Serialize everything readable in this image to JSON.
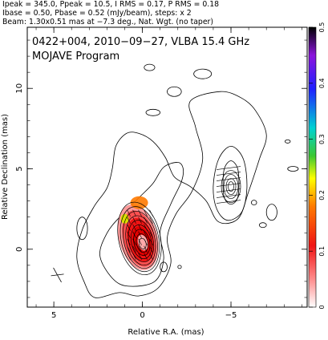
{
  "header": {
    "line1": "Ipeak = 345.0, Ppeak = 10.5, I RMS = 0.17, P RMS = 0.18",
    "line2": "Ibase = 0.50, Pbase = 0.52 (mJy/beam), steps: x 2",
    "line3": "Beam: 1.30x0.51 mas at −7.3 deg., Nat. Wgt. (no taper)"
  },
  "chart_data": {
    "type": "contour",
    "title": "0422+004, 2010−09−27, VLBA 15.4 GHz",
    "subtitle": "MOJAVE Program",
    "xlabel": "Relative R.A. (mas)",
    "ylabel": "Relative Declination (mas)",
    "xlim": [
      6.5,
      -9.3
    ],
    "ylim": [
      -3.6,
      13.8
    ],
    "x_ticks": [
      5,
      0,
      -5
    ],
    "y_ticks": [
      0,
      5,
      10
    ],
    "x_tick_labels": [
      "5",
      "0",
      "−5"
    ],
    "y_tick_labels": [
      "0",
      "5",
      "10"
    ],
    "colorbar": {
      "min": 0,
      "max": 0.5,
      "ticks": [
        0,
        0.1,
        0.2,
        0.3,
        0.4,
        0.5
      ],
      "tick_labels": [
        "0",
        "0.1",
        "0.2",
        "0.3",
        "0.4",
        "0.5"
      ]
    },
    "beam": {
      "major_mas": 1.3,
      "minor_mas": 0.51,
      "pa_deg": -7.3
    },
    "cross_marker": [
      4.8,
      -1.6
    ],
    "core": {
      "x": 0,
      "y": 0.3,
      "contour_count": 9
    },
    "polarized_core_color_levels": [
      0.05,
      0.1,
      0.14,
      0.17,
      0.2
    ],
    "outer_envelope": [
      [
        2.7,
        -3.0
      ],
      [
        1.3,
        -2.7
      ],
      [
        0.2,
        -2.9
      ],
      [
        -0.9,
        -2.4
      ],
      [
        -1.6,
        -0.9
      ],
      [
        -1.4,
        0.7
      ],
      [
        -1.9,
        2.2
      ],
      [
        -2.8,
        3.6
      ],
      [
        -3.4,
        5.6
      ],
      [
        -3.0,
        7.6
      ],
      [
        -2.7,
        9.2
      ],
      [
        -4.4,
        9.8
      ],
      [
        -5.6,
        9.4
      ],
      [
        -6.4,
        8.6
      ],
      [
        -7.0,
        7.1
      ],
      [
        -6.6,
        5.6
      ],
      [
        -6.0,
        3.6
      ],
      [
        -5.4,
        1.9
      ],
      [
        -4.3,
        1.7
      ],
      [
        -3.6,
        3.0
      ],
      [
        -2.7,
        3.9
      ],
      [
        -1.8,
        4.5
      ],
      [
        -1.3,
        5.7
      ],
      [
        -0.6,
        6.7
      ],
      [
        0.2,
        7.2
      ],
      [
        0.9,
        7.2
      ],
      [
        1.5,
        6.4
      ],
      [
        1.7,
        5.0
      ],
      [
        2.0,
        3.8
      ],
      [
        2.7,
        2.7
      ],
      [
        3.4,
        1.2
      ],
      [
        3.7,
        -0.5
      ],
      [
        3.3,
        -2.0
      ]
    ],
    "jet_contour": [
      [
        1.7,
        -1.8
      ],
      [
        0.8,
        -2.3
      ],
      [
        -0.7,
        -2.0
      ],
      [
        -1.2,
        -0.6
      ],
      [
        -1.0,
        1.1
      ],
      [
        -1.6,
        2.8
      ],
      [
        -2.2,
        4.2
      ],
      [
        -2.3,
        5.0
      ],
      [
        -2.0,
        5.4
      ],
      [
        -1.2,
        5.1
      ],
      [
        -0.6,
        4.1
      ],
      [
        0.2,
        3.2
      ],
      [
        1.2,
        2.1
      ],
      [
        2.0,
        1.0
      ],
      [
        2.4,
        -0.4
      ]
    ],
    "knot_outer": [
      [
        -4.3,
        5.6
      ],
      [
        -4.0,
        3.9
      ],
      [
        -4.2,
        2.5
      ],
      [
        -4.8,
        1.8
      ],
      [
        -5.6,
        2.3
      ],
      [
        -5.9,
        3.8
      ],
      [
        -5.7,
        5.6
      ],
      [
        -5.0,
        6.4
      ]
    ],
    "knot_inner": [
      [
        -4.6,
        4.9
      ],
      [
        -4.6,
        3.3
      ],
      [
        -5.0,
        2.8
      ],
      [
        -5.4,
        3.3
      ],
      [
        -5.4,
        4.9
      ],
      [
        -5.0,
        5.5
      ]
    ],
    "islands": [
      [
        3.4,
        1.3,
        0.3,
        0.7
      ],
      [
        -0.6,
        8.5,
        0.4,
        0.2
      ],
      [
        -1.8,
        9.8,
        0.4,
        0.3
      ],
      [
        -3.4,
        10.9,
        0.5,
        0.3
      ],
      [
        -0.4,
        11.3,
        0.3,
        0.2
      ],
      [
        -7.3,
        2.3,
        0.3,
        0.5
      ],
      [
        -6.3,
        2.9,
        0.15,
        0.15
      ],
      [
        -6.8,
        1.5,
        0.2,
        0.15
      ],
      [
        -2.1,
        -1.1,
        0.1,
        0.1
      ],
      [
        -1.2,
        -1.1,
        0.2,
        0.3
      ],
      [
        -8.5,
        5.0,
        0.3,
        0.15
      ],
      [
        -8.2,
        6.7,
        0.15,
        0.1
      ]
    ]
  }
}
